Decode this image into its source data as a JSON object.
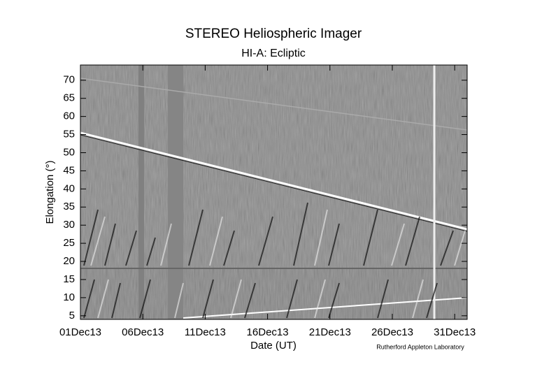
{
  "chart_data": {
    "type": "image",
    "title": "STEREO Heliospheric Imager",
    "subtitle": "HI-A: Ecliptic",
    "xlabel": "Date (UT)",
    "ylabel": "Elongation (°)",
    "credit": "Rutherford Appleton Laboratory",
    "xlim": [
      "2013-12-01",
      "2014-01-01"
    ],
    "xticks": [
      {
        "value": "2013-12-01",
        "label": "01Dec13"
      },
      {
        "value": "2013-12-06",
        "label": "06Dec13"
      },
      {
        "value": "2013-12-11",
        "label": "11Dec13"
      },
      {
        "value": "2013-12-16",
        "label": "16Dec13"
      },
      {
        "value": "2013-12-21",
        "label": "21Dec13"
      },
      {
        "value": "2013-12-26",
        "label": "26Dec13"
      },
      {
        "value": "2013-12-31",
        "label": "31Dec13"
      }
    ],
    "ylim": [
      4,
      74.2
    ],
    "yticks": [
      5,
      10,
      15,
      20,
      25,
      30,
      35,
      40,
      45,
      50,
      55,
      60,
      65,
      70
    ]
  }
}
